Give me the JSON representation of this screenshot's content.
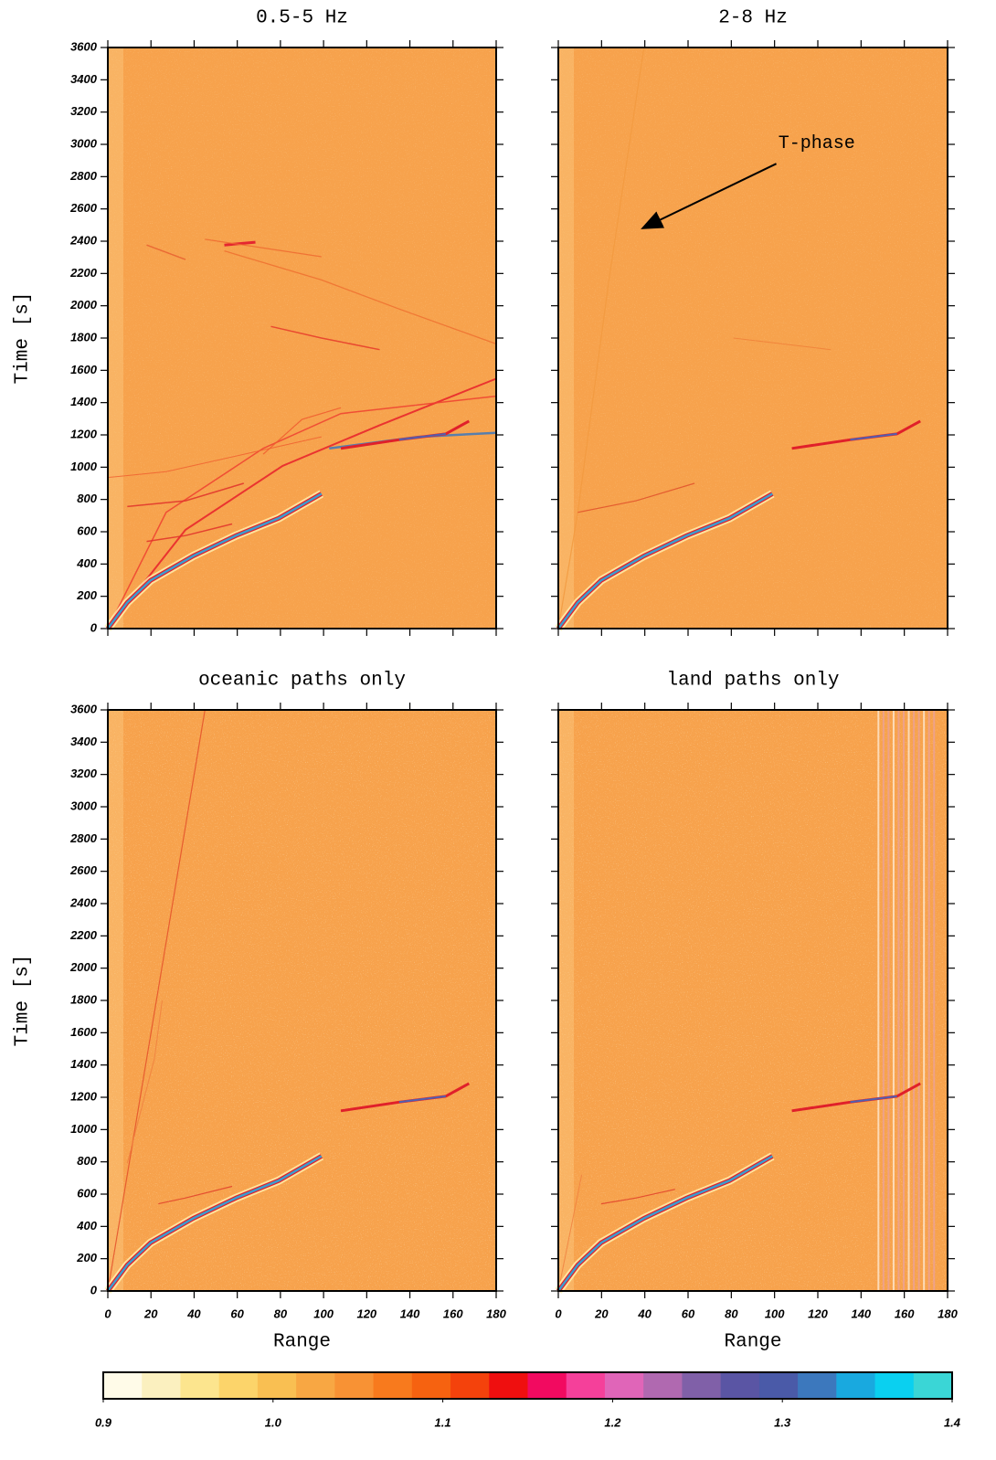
{
  "chart_data": [
    {
      "type": "heatmap",
      "title": "0.5-5 Hz",
      "ylabel": "Time [s]",
      "xlim": [
        0,
        180
      ],
      "ylim": [
        0,
        3600
      ],
      "xticks": [
        0,
        20,
        40,
        60,
        80,
        100,
        120,
        140,
        160,
        180
      ],
      "yticks": [
        0,
        200,
        400,
        600,
        800,
        1000,
        1200,
        1400,
        1600,
        1800,
        2000,
        2200,
        2400,
        2600,
        2800,
        3000,
        3200,
        3400,
        3600
      ],
      "show_xticklabels": false,
      "show_yticklabels": true
    },
    {
      "type": "heatmap",
      "title": "2-8 Hz",
      "annotation": "T-phase",
      "xlim": [
        0,
        180
      ],
      "ylim": [
        0,
        3600
      ],
      "xticks": [
        0,
        20,
        40,
        60,
        80,
        100,
        120,
        140,
        160,
        180
      ],
      "yticks": [
        0,
        200,
        400,
        600,
        800,
        1000,
        1200,
        1400,
        1600,
        1800,
        2000,
        2200,
        2400,
        2600,
        2800,
        3000,
        3200,
        3400,
        3600
      ],
      "show_xticklabels": false,
      "show_yticklabels": false
    },
    {
      "type": "heatmap",
      "title": "oceanic paths only",
      "xlabel": "Range",
      "ylabel": "Time [s]",
      "xlim": [
        0,
        180
      ],
      "ylim": [
        0,
        3600
      ],
      "xticks": [
        0,
        20,
        40,
        60,
        80,
        100,
        120,
        140,
        160,
        180
      ],
      "yticks": [
        0,
        200,
        400,
        600,
        800,
        1000,
        1200,
        1400,
        1600,
        1800,
        2000,
        2200,
        2400,
        2600,
        2800,
        3000,
        3200,
        3400,
        3600
      ],
      "show_xticklabels": true,
      "show_yticklabels": true
    },
    {
      "type": "heatmap",
      "title": "land paths only",
      "xlabel": "Range",
      "xlim": [
        0,
        180
      ],
      "ylim": [
        0,
        3600
      ],
      "xticks": [
        0,
        20,
        40,
        60,
        80,
        100,
        120,
        140,
        160,
        180
      ],
      "yticks": [
        0,
        200,
        400,
        600,
        800,
        1000,
        1200,
        1400,
        1600,
        1800,
        2000,
        2200,
        2400,
        2600,
        2800,
        3000,
        3200,
        3400,
        3600
      ],
      "show_xticklabels": true,
      "show_yticklabels": false
    },
    {
      "type": "colorbar",
      "xlim": [
        0.9,
        1.4
      ],
      "xticks": [
        0.9,
        {
          "value": 1,
          "label": "1.0"
        },
        1.1,
        1.2,
        1.3,
        1.4
      ],
      "colors": [
        "#fffbe8",
        "#fbf0bf",
        "#fce58e",
        "#fcd46a",
        "#f9bf52",
        "#f8a743",
        "#f89234",
        "#f87a1d",
        "#f66210",
        "#f4420c",
        "#ef0f0f",
        "#f20a60",
        "#f5409a",
        "#e065b8",
        "#b069b0",
        "#8060a8",
        "#5a55a4",
        "#4a5aa8",
        "#3c78bd",
        "#19a9df",
        "#0ad0f0",
        "#3ad6d6"
      ]
    }
  ]
}
